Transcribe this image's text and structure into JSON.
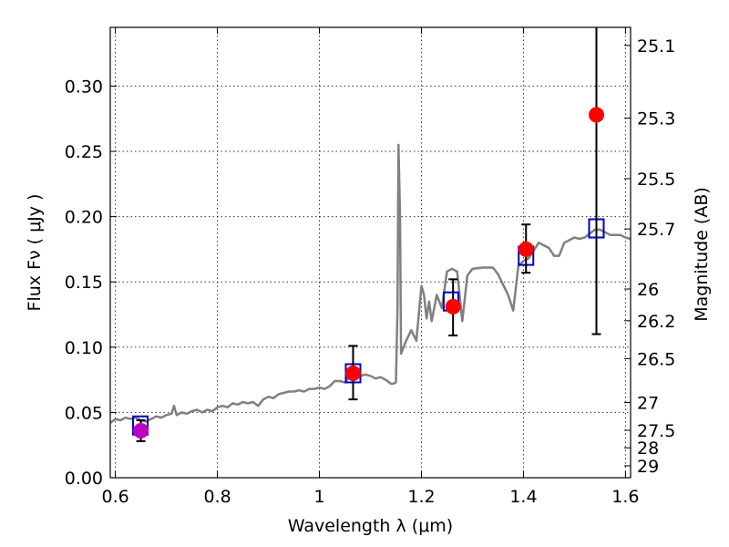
{
  "chart_data": {
    "type": "scatter",
    "title": "",
    "xlabel": "Wavelength  λ (μm)",
    "ylabel": "Flux  Fν  ( μJy )",
    "y2label": "Magnitude (AB)",
    "xlim": [
      0.59,
      1.61
    ],
    "ylim": [
      0.0,
      0.345
    ],
    "grid": true,
    "x_ticks": [
      {
        "value": 0.6,
        "label": "0.6"
      },
      {
        "value": 0.8,
        "label": "0.8"
      },
      {
        "value": 1.0,
        "label": "1"
      },
      {
        "value": 1.2,
        "label": "1.2"
      },
      {
        "value": 1.4,
        "label": "1.4"
      },
      {
        "value": 1.6,
        "label": "1.6"
      }
    ],
    "y_ticks": [
      {
        "value": 0.0,
        "label": "0.00"
      },
      {
        "value": 0.05,
        "label": "0.05"
      },
      {
        "value": 0.1,
        "label": "0.10"
      },
      {
        "value": 0.15,
        "label": "0.15"
      },
      {
        "value": 0.2,
        "label": "0.20"
      },
      {
        "value": 0.25,
        "label": "0.25"
      },
      {
        "value": 0.3,
        "label": "0.30"
      }
    ],
    "mag_ticks": [
      {
        "mag": 25.1,
        "label": "25.1"
      },
      {
        "mag": 25.3,
        "label": "25.3"
      },
      {
        "mag": 25.5,
        "label": "25.5"
      },
      {
        "mag": 25.7,
        "label": "25.7"
      },
      {
        "mag": 26.0,
        "label": "26"
      },
      {
        "mag": 26.2,
        "label": "26.2"
      },
      {
        "mag": 26.5,
        "label": "26.5"
      },
      {
        "mag": 27.0,
        "label": "27"
      },
      {
        "mag": 27.5,
        "label": "27.5"
      },
      {
        "mag": 28.0,
        "label": "28"
      },
      {
        "mag": 29.0,
        "label": "29"
      }
    ],
    "series": [
      {
        "kind": "line",
        "color": "#808080",
        "points": [
          [
            0.59,
            0.042
          ],
          [
            0.6,
            0.045
          ],
          [
            0.61,
            0.044
          ],
          [
            0.62,
            0.046
          ],
          [
            0.63,
            0.045
          ],
          [
            0.64,
            0.046
          ],
          [
            0.65,
            0.044
          ],
          [
            0.66,
            0.043
          ],
          [
            0.67,
            0.045
          ],
          [
            0.68,
            0.047
          ],
          [
            0.69,
            0.046
          ],
          [
            0.7,
            0.048
          ],
          [
            0.71,
            0.049
          ],
          [
            0.715,
            0.055
          ],
          [
            0.72,
            0.048
          ],
          [
            0.73,
            0.05
          ],
          [
            0.74,
            0.049
          ],
          [
            0.75,
            0.051
          ],
          [
            0.76,
            0.052
          ],
          [
            0.77,
            0.05
          ],
          [
            0.78,
            0.052
          ],
          [
            0.79,
            0.051
          ],
          [
            0.8,
            0.054
          ],
          [
            0.81,
            0.055
          ],
          [
            0.82,
            0.054
          ],
          [
            0.83,
            0.057
          ],
          [
            0.84,
            0.056
          ],
          [
            0.85,
            0.058
          ],
          [
            0.86,
            0.057
          ],
          [
            0.87,
            0.058
          ],
          [
            0.88,
            0.055
          ],
          [
            0.89,
            0.06
          ],
          [
            0.9,
            0.062
          ],
          [
            0.91,
            0.061
          ],
          [
            0.92,
            0.064
          ],
          [
            0.93,
            0.065
          ],
          [
            0.94,
            0.066
          ],
          [
            0.95,
            0.066
          ],
          [
            0.96,
            0.067
          ],
          [
            0.97,
            0.066
          ],
          [
            0.98,
            0.068
          ],
          [
            0.99,
            0.068
          ],
          [
            1.0,
            0.069
          ],
          [
            1.01,
            0.068
          ],
          [
            1.02,
            0.07
          ],
          [
            1.03,
            0.074
          ],
          [
            1.04,
            0.074
          ],
          [
            1.05,
            0.073
          ],
          [
            1.06,
            0.078
          ],
          [
            1.07,
            0.077
          ],
          [
            1.08,
            0.078
          ],
          [
            1.09,
            0.079
          ],
          [
            1.1,
            0.078
          ],
          [
            1.11,
            0.076
          ],
          [
            1.12,
            0.077
          ],
          [
            1.13,
            0.075
          ],
          [
            1.14,
            0.072
          ],
          [
            1.145,
            0.072
          ],
          [
            1.15,
            0.073
          ],
          [
            1.153,
            0.13
          ],
          [
            1.155,
            0.255
          ],
          [
            1.158,
            0.2
          ],
          [
            1.16,
            0.095
          ],
          [
            1.17,
            0.105
          ],
          [
            1.18,
            0.113
          ],
          [
            1.19,
            0.105
          ],
          [
            1.2,
            0.147
          ],
          [
            1.205,
            0.14
          ],
          [
            1.21,
            0.122
          ],
          [
            1.215,
            0.135
          ],
          [
            1.22,
            0.12
          ],
          [
            1.23,
            0.14
          ],
          [
            1.24,
            0.13
          ],
          [
            1.25,
            0.158
          ],
          [
            1.26,
            0.16
          ],
          [
            1.27,
            0.158
          ],
          [
            1.28,
            0.12
          ],
          [
            1.29,
            0.155
          ],
          [
            1.3,
            0.16
          ],
          [
            1.32,
            0.161
          ],
          [
            1.34,
            0.161
          ],
          [
            1.35,
            0.156
          ],
          [
            1.36,
            0.148
          ],
          [
            1.37,
            0.14
          ],
          [
            1.38,
            0.128
          ],
          [
            1.39,
            0.162
          ],
          [
            1.4,
            0.166
          ],
          [
            1.41,
            0.168
          ],
          [
            1.42,
            0.174
          ],
          [
            1.43,
            0.18
          ],
          [
            1.44,
            0.178
          ],
          [
            1.45,
            0.176
          ],
          [
            1.46,
            0.17
          ],
          [
            1.47,
            0.17
          ],
          [
            1.48,
            0.18
          ],
          [
            1.49,
            0.182
          ],
          [
            1.5,
            0.184
          ],
          [
            1.51,
            0.183
          ],
          [
            1.52,
            0.184
          ],
          [
            1.53,
            0.187
          ],
          [
            1.54,
            0.19
          ],
          [
            1.55,
            0.19
          ],
          [
            1.56,
            0.188
          ],
          [
            1.57,
            0.186
          ],
          [
            1.58,
            0.186
          ],
          [
            1.59,
            0.186
          ],
          [
            1.6,
            0.184
          ],
          [
            1.61,
            0.183
          ]
        ]
      },
      {
        "kind": "open-square",
        "color": "#0000cc",
        "x": [
          0.649,
          1.066,
          1.258,
          1.405,
          1.543
        ],
        "y": [
          0.04,
          0.08,
          0.135,
          0.17,
          0.191
        ]
      },
      {
        "kind": "errorbar",
        "color": "#000000",
        "x": [
          0.65,
          1.066,
          1.262,
          1.405,
          1.543
        ],
        "y": [
          0.036,
          0.08,
          0.131,
          0.175,
          0.278
        ],
        "err_low": [
          0.008,
          0.02,
          0.022,
          0.018,
          0.168
        ],
        "err_high": [
          0.008,
          0.021,
          0.021,
          0.019,
          0.072
        ]
      },
      {
        "kind": "filled-circle",
        "color": "#ff0000",
        "x": [
          1.066,
          1.262,
          1.405,
          1.543
        ],
        "y": [
          0.08,
          0.131,
          0.175,
          0.278
        ]
      },
      {
        "kind": "filled-circle",
        "color": "#bf00bf",
        "x": [
          0.65
        ],
        "y": [
          0.036
        ]
      }
    ]
  }
}
